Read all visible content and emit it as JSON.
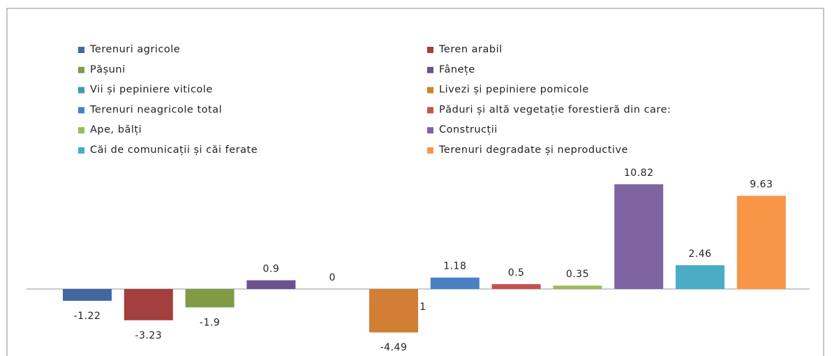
{
  "chart_data": {
    "type": "bar",
    "series": [
      {
        "name": "Terenuri agricole",
        "color": "#4169a0",
        "values": [
          -1.22
        ]
      },
      {
        "name": "Teren arabil",
        "color": "#a33f3c",
        "values": [
          -3.23
        ]
      },
      {
        "name": "Pășuni",
        "color": "#7f9b46",
        "values": [
          -1.9
        ]
      },
      {
        "name": "Fânețe",
        "color": "#6c5190",
        "values": [
          0.9
        ]
      },
      {
        "name": "Vii și pepiniere viticole",
        "color": "#3b9aae",
        "values": [
          0
        ]
      },
      {
        "name": "Livezi și pepiniere pomicole",
        "color": "#d07f35",
        "values": [
          -4.49
        ]
      },
      {
        "name": "Terenuri neagricole total",
        "color": "#4a7fc4",
        "values": [
          1.18
        ]
      },
      {
        "name": "Păduri și altă vegetație forestieră din care:",
        "color": "#c9504d",
        "values": [
          0.5
        ]
      },
      {
        "name": "Ape, bălți",
        "color": "#9bbb59",
        "values": [
          0.35
        ]
      },
      {
        "name": "Construcții",
        "color": "#8064a2",
        "values": [
          10.82
        ]
      },
      {
        "name": "Căi de comunicații și căi ferate",
        "color": "#4bacc6",
        "values": [
          2.46
        ]
      },
      {
        "name": "Terenuri degradate și neproductive",
        "color": "#f79646",
        "values": [
          9.63
        ]
      }
    ],
    "annotations": [
      "1"
    ]
  }
}
